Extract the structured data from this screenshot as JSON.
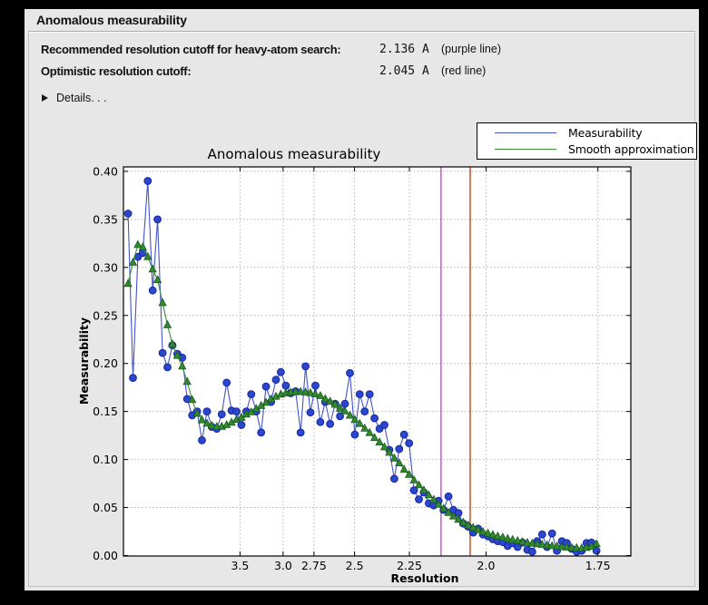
{
  "header": {
    "title": "Anomalous measurability"
  },
  "summary": {
    "rows": [
      {
        "label": "Recommended resolution cutoff for heavy-atom search:",
        "value": "2.136 A",
        "note": "(purple line)"
      },
      {
        "label": "Optimistic resolution cutoff:",
        "value": "2.045 A",
        "note": "(red line)"
      }
    ],
    "details_label": "Details. . ."
  },
  "legend": {
    "items": [
      {
        "label": "Measurability",
        "color": "#4254cc"
      },
      {
        "label": "Smooth approximation",
        "color": "#3c8c3c"
      }
    ]
  },
  "chart_data": {
    "type": "line",
    "title": "Anomalous measurability",
    "xlabel": "Resolution",
    "ylabel": "Measurability",
    "grid": true,
    "legend_position": "upper right",
    "ylim": [
      0.0,
      0.404
    ],
    "y_tick_labels": [
      "0.00",
      "0.05",
      "0.10",
      "0.15",
      "0.20",
      "0.25",
      "0.30",
      "0.35",
      "0.40"
    ],
    "y_tick_values": [
      0.0,
      0.05,
      0.1,
      0.15,
      0.2,
      0.25,
      0.3,
      0.35,
      0.4
    ],
    "x_tick_labels": [
      "3.5",
      "3.0",
      "2.75",
      "2.5",
      "2.25",
      "2.0",
      "1.75"
    ],
    "x_tick_d": [
      3.5,
      3.0,
      2.75,
      2.5,
      2.25,
      2.0,
      1.75
    ],
    "x_scale": "linear in 1/d^2, d = resolution in Angstrom, high resolution to the right",
    "x_range_inv_d2": [
      0.0019,
      0.349
    ],
    "points_inv_d2_start": 0.005,
    "points_inv_d2_step": 0.0033737,
    "n_points": 96,
    "d_first": 14.1,
    "d_last": 1.75,
    "vlines": [
      {
        "name": "recommended-cutoff",
        "d": 2.136,
        "color": "#c83cc8"
      },
      {
        "name": "optimistic-cutoff",
        "d": 2.045,
        "color": "#cc3300"
      }
    ],
    "series": [
      {
        "name": "Measurability",
        "color": "#4254cc",
        "marker": "circle",
        "marker_color": "#2b46cf",
        "marker_edge": "#14279e",
        "values": [
          0.356,
          0.185,
          0.311,
          0.315,
          0.39,
          0.276,
          0.35,
          0.211,
          0.196,
          0.219,
          0.21,
          0.206,
          0.163,
          0.146,
          0.15,
          0.12,
          0.15,
          0.134,
          0.132,
          0.147,
          0.18,
          0.151,
          0.15,
          0.136,
          0.15,
          0.168,
          0.15,
          0.128,
          0.176,
          0.16,
          0.183,
          0.191,
          0.177,
          0.169,
          0.171,
          0.128,
          0.197,
          0.149,
          0.177,
          0.139,
          0.16,
          0.137,
          0.158,
          0.145,
          0.158,
          0.19,
          0.126,
          0.168,
          0.15,
          0.168,
          0.143,
          0.132,
          0.136,
          0.11,
          0.08,
          0.111,
          0.126,
          0.117,
          0.068,
          0.0585,
          0.0657,
          0.0544,
          0.0522,
          0.0569,
          0.0475,
          0.0616,
          0.0475,
          0.0443,
          0.0333,
          0.03,
          0.024,
          0.028,
          0.022,
          0.02,
          0.017,
          0.015,
          0.014,
          0.01,
          0.013,
          0.009,
          0.0135,
          0.006,
          0.004,
          0.015,
          0.022,
          0.009,
          0.023,
          0.005,
          0.015,
          0.013,
          0.007,
          0.004,
          0.005,
          0.013,
          0.0135,
          0.005
        ]
      },
      {
        "name": "Smooth approximation",
        "color": "#3c8c3c",
        "marker": "triangle_up",
        "marker_color": "#2f8b2f",
        "marker_edge": "#1d571d",
        "values": [
          0.283,
          0.305,
          0.3235,
          0.321,
          0.311,
          0.298,
          0.287,
          0.263,
          0.24,
          0.22,
          0.208,
          0.197,
          0.181,
          0.162,
          0.148,
          0.141,
          0.1375,
          0.1352,
          0.134,
          0.1343,
          0.136,
          0.1385,
          0.1415,
          0.1437,
          0.147,
          0.1493,
          0.1527,
          0.156,
          0.1592,
          0.1628,
          0.1655,
          0.1678,
          0.169,
          0.1698,
          0.1703,
          0.1704,
          0.17,
          0.1692,
          0.168,
          0.1662,
          0.163,
          0.1603,
          0.1572,
          0.1532,
          0.1502,
          0.1458,
          0.1413,
          0.1372,
          0.1323,
          0.1278,
          0.1226,
          0.1179,
          0.1128,
          0.1072,
          0.1012,
          0.0962,
          0.0895,
          0.0841,
          0.0786,
          0.0733,
          0.0679,
          0.0629,
          0.0581,
          0.0532,
          0.0488,
          0.0446,
          0.0409,
          0.0375,
          0.0343,
          0.0314,
          0.029,
          0.0267,
          0.0246,
          0.023,
          0.0215,
          0.02,
          0.0188,
          0.0175,
          0.0164,
          0.0153,
          0.0143,
          0.0133,
          0.0126,
          0.012,
          0.0113,
          0.0107,
          0.01,
          0.0094,
          0.0089,
          0.0085,
          0.0081,
          0.0078,
          0.0076,
          0.0082,
          0.0094,
          0.012
        ]
      }
    ]
  }
}
